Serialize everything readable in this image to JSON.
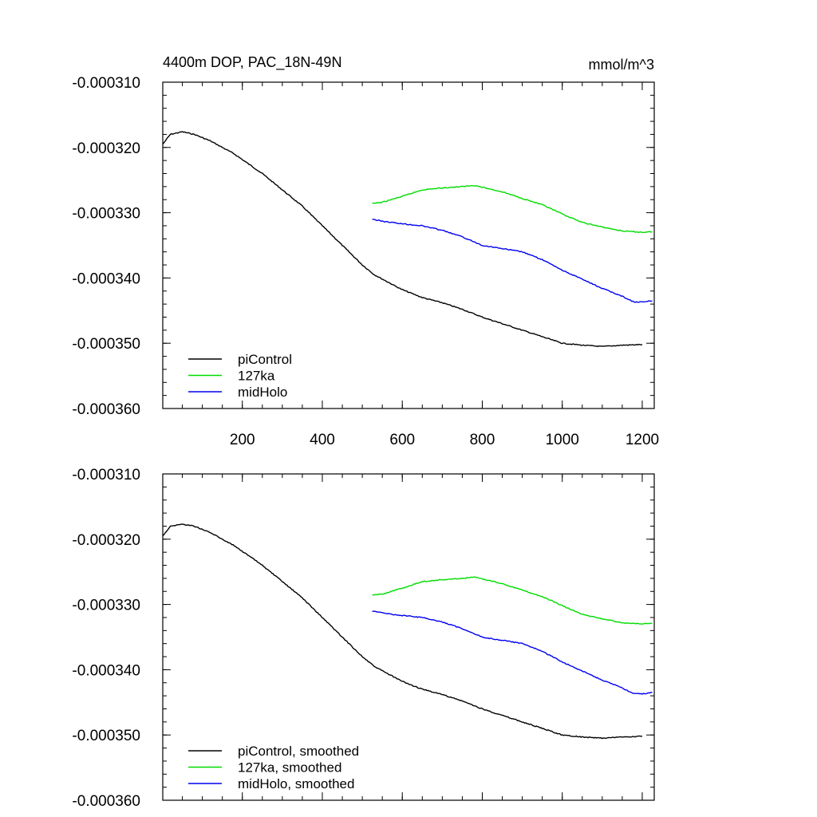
{
  "title_left": "4400m DOP, PAC_18N-49N",
  "title_right": "mmol/m^3",
  "colors": {
    "piControl": "#000000",
    "127ka": "#00dd00",
    "midHolo": "#0000ee"
  },
  "chart_data": [
    {
      "type": "line",
      "title": "4400m DOP, PAC_18N-49N",
      "units": "mmol/m^3",
      "xlim": [
        1,
        1230
      ],
      "ylim": [
        -0.00036,
        -0.00031
      ],
      "xticks": [
        200,
        400,
        600,
        800,
        1000,
        1200
      ],
      "xtick_labels": [
        "200",
        "400",
        "600",
        "800",
        "1000",
        "1200"
      ],
      "yticks": [
        -0.00031,
        -0.00032,
        -0.00033,
        -0.00034,
        -0.00035,
        -0.00036
      ],
      "ytick_labels": [
        "-0.000310",
        "-0.000320",
        "-0.000330",
        "-0.000340",
        "-0.000350",
        "-0.000360"
      ],
      "legend_position": "bottom-left",
      "series": [
        {
          "name": "piControl",
          "color": "#000000",
          "x": [
            1,
            20,
            50,
            80,
            120,
            180,
            250,
            300,
            350,
            400,
            450,
            500,
            530,
            560,
            600,
            650,
            700,
            750,
            800,
            850,
            900,
            950,
            1000,
            1050,
            1100,
            1150,
            1200
          ],
          "y": [
            -0.0003195,
            -0.000318,
            -0.0003176,
            -0.000318,
            -0.000319,
            -0.000321,
            -0.000324,
            -0.0003265,
            -0.000329,
            -0.000332,
            -0.000335,
            -0.000338,
            -0.0003395,
            -0.0003405,
            -0.0003418,
            -0.000343,
            -0.0003438,
            -0.0003448,
            -0.000346,
            -0.000347,
            -0.000348,
            -0.000349,
            -0.00035,
            -0.0003503,
            -0.0003505,
            -0.0003503,
            -0.0003502
          ]
        },
        {
          "name": "127ka",
          "color": "#00dd00",
          "x": [
            525,
            550,
            600,
            650,
            700,
            750,
            780,
            800,
            850,
            900,
            950,
            1000,
            1050,
            1100,
            1150,
            1200,
            1225
          ],
          "y": [
            -0.0003286,
            -0.0003284,
            -0.0003275,
            -0.0003265,
            -0.0003262,
            -0.000326,
            -0.0003258,
            -0.0003261,
            -0.0003268,
            -0.0003278,
            -0.0003288,
            -0.0003302,
            -0.0003315,
            -0.0003322,
            -0.0003328,
            -0.000333,
            -0.0003329
          ]
        },
        {
          "name": "midHolo",
          "color": "#0000ee",
          "x": [
            525,
            550,
            600,
            650,
            700,
            750,
            800,
            850,
            900,
            950,
            1000,
            1050,
            1100,
            1150,
            1180,
            1200,
            1225
          ],
          "y": [
            -0.000331,
            -0.0003313,
            -0.0003317,
            -0.000332,
            -0.0003327,
            -0.0003337,
            -0.000335,
            -0.0003355,
            -0.000336,
            -0.0003372,
            -0.0003388,
            -0.0003402,
            -0.0003416,
            -0.0003428,
            -0.0003437,
            -0.0003437,
            -0.0003435
          ]
        }
      ]
    },
    {
      "type": "line",
      "title": "",
      "xlim": [
        1,
        1230
      ],
      "ylim": [
        -0.00036,
        -0.00031
      ],
      "xticks": [
        200,
        400,
        600,
        800,
        1000,
        1200
      ],
      "yticks": [
        -0.00031,
        -0.00032,
        -0.00033,
        -0.00034,
        -0.00035,
        -0.00036
      ],
      "ytick_labels": [
        "-0.000310",
        "-0.000320",
        "-0.000330",
        "-0.000340",
        "-0.000350",
        "-0.000360"
      ],
      "legend_position": "bottom-left",
      "series": [
        {
          "name": "piControl, smoothed",
          "color": "#000000",
          "x": [
            1,
            20,
            50,
            80,
            120,
            180,
            250,
            300,
            350,
            400,
            450,
            500,
            530,
            560,
            600,
            650,
            700,
            750,
            800,
            850,
            900,
            950,
            1000,
            1050,
            1100,
            1150,
            1200
          ],
          "y": [
            -0.0003195,
            -0.000318,
            -0.0003177,
            -0.000318,
            -0.000319,
            -0.000321,
            -0.000324,
            -0.0003265,
            -0.000329,
            -0.000332,
            -0.000335,
            -0.000338,
            -0.0003395,
            -0.0003405,
            -0.0003418,
            -0.000343,
            -0.0003438,
            -0.0003448,
            -0.000346,
            -0.000347,
            -0.000348,
            -0.000349,
            -0.00035,
            -0.0003503,
            -0.0003505,
            -0.0003503,
            -0.0003502
          ]
        },
        {
          "name": "127ka, smoothed",
          "color": "#00dd00",
          "x": [
            525,
            550,
            600,
            650,
            700,
            750,
            780,
            800,
            850,
            900,
            950,
            1000,
            1050,
            1100,
            1150,
            1200,
            1225
          ],
          "y": [
            -0.0003286,
            -0.0003284,
            -0.0003275,
            -0.0003265,
            -0.0003262,
            -0.000326,
            -0.0003258,
            -0.0003261,
            -0.0003268,
            -0.0003278,
            -0.0003288,
            -0.0003302,
            -0.0003315,
            -0.0003322,
            -0.0003328,
            -0.000333,
            -0.0003329
          ]
        },
        {
          "name": "midHolo, smoothed",
          "color": "#0000ee",
          "x": [
            525,
            550,
            600,
            650,
            700,
            750,
            800,
            850,
            900,
            950,
            1000,
            1050,
            1100,
            1150,
            1180,
            1200,
            1225
          ],
          "y": [
            -0.000331,
            -0.0003313,
            -0.0003317,
            -0.000332,
            -0.0003327,
            -0.0003337,
            -0.000335,
            -0.0003355,
            -0.000336,
            -0.0003372,
            -0.0003388,
            -0.0003402,
            -0.0003416,
            -0.0003428,
            -0.0003437,
            -0.0003437,
            -0.0003435
          ]
        }
      ]
    }
  ]
}
